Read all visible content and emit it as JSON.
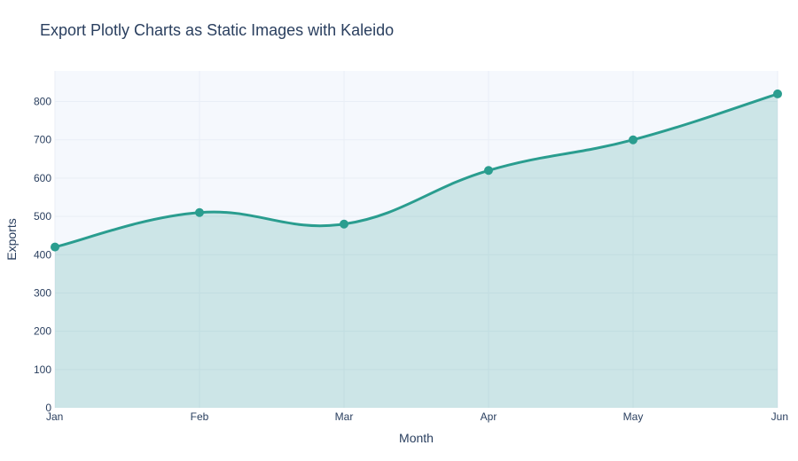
{
  "chart_data": {
    "type": "area",
    "title": "Export Plotly Charts as Static Images with Kaleido",
    "xlabel": "Month",
    "ylabel": "Exports",
    "categories": [
      "Jan",
      "Feb",
      "Mar",
      "Apr",
      "May",
      "Jun"
    ],
    "series": [
      {
        "values": [
          420,
          510,
          480,
          620,
          700,
          820
        ]
      }
    ],
    "y_ticks": [
      0,
      100,
      200,
      300,
      400,
      500,
      600,
      700,
      800
    ],
    "ylim": [
      0,
      880
    ],
    "grid": true,
    "legend": "none",
    "line_shape": "spline",
    "colors": {
      "line": "#2a9d8f",
      "fill": "rgba(42,157,143,0.2)",
      "plot_bg": "#f5f8fd",
      "grid": "#e9eef6",
      "text": "#2a3f5f"
    }
  }
}
